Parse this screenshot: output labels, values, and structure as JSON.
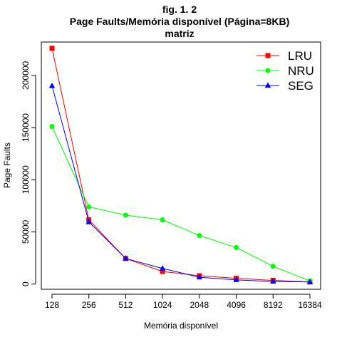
{
  "chart_data": {
    "type": "line",
    "title": [
      "fig. 1. 2",
      "Page Faults/Memória disponível (Página=8KB)",
      "matriz"
    ],
    "xlabel": "Memória disponível",
    "ylabel": "Page Faults",
    "categories": [
      "128",
      "256",
      "512",
      "1024",
      "2048",
      "4096",
      "8192",
      "16384"
    ],
    "yticks": [
      0,
      50000,
      100000,
      150000,
      200000
    ],
    "ylim": [
      -5000,
      232000
    ],
    "legend_position": "top-right",
    "series": [
      {
        "name": "LRU",
        "color": "#ff0000",
        "marker": "square",
        "values": [
          226000,
          61500,
          24500,
          12000,
          8000,
          5500,
          3500,
          2000
        ]
      },
      {
        "name": "NRU",
        "color": "#00ff00",
        "marker": "circle",
        "values": [
          151000,
          74000,
          66000,
          61500,
          46500,
          35000,
          17000,
          3000
        ]
      },
      {
        "name": "SEG",
        "color": "#0000ff",
        "marker": "triangle",
        "values": [
          190000,
          59500,
          24500,
          15000,
          6500,
          4000,
          2500,
          2000
        ]
      }
    ]
  }
}
